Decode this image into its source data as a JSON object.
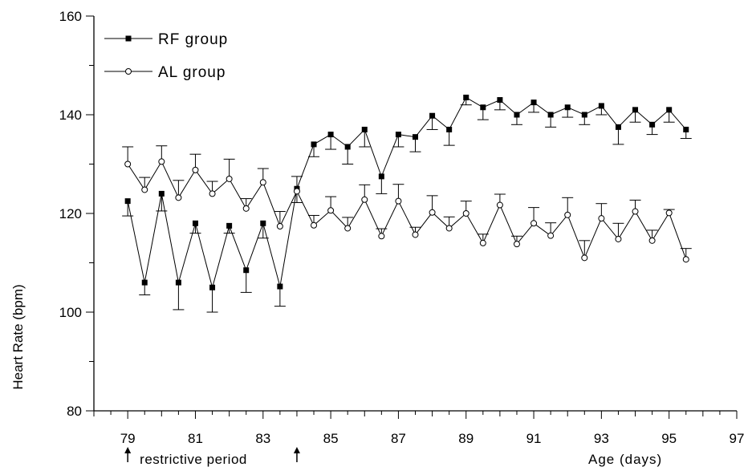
{
  "chart_data": {
    "type": "line",
    "title": "",
    "xlabel": "Age (days)",
    "ylabel": "Heart Rate (bpm)",
    "xlim": [
      78,
      97
    ],
    "ylim": [
      80,
      160
    ],
    "x_ticks": [
      79,
      81,
      83,
      85,
      87,
      89,
      91,
      93,
      95,
      97
    ],
    "y_ticks": [
      80,
      100,
      120,
      140,
      160
    ],
    "grid": false,
    "legend_position": "top-left",
    "annotation": "restrictive period",
    "restrictive_period": [
      79,
      84
    ],
    "x": [
      79,
      79.5,
      80,
      80.5,
      81,
      81.5,
      82,
      82.5,
      83,
      83.5,
      84,
      84.5,
      85,
      85.5,
      86,
      86.5,
      87,
      87.5,
      88,
      88.5,
      89,
      89.5,
      90,
      90.5,
      91,
      91.5,
      92,
      92.5,
      93,
      93.5,
      94,
      94.5,
      95,
      95.5
    ],
    "series": [
      {
        "name": "RF group",
        "marker": "filled-square",
        "error_direction": "down",
        "values": [
          122.5,
          106,
          124,
          106,
          118,
          105,
          117.5,
          108.5,
          118,
          105.2,
          125,
          134,
          136,
          133.5,
          137,
          127.5,
          136,
          135.5,
          139.8,
          137,
          143.5,
          141.5,
          143,
          140,
          142.5,
          140,
          141.5,
          140,
          141.8,
          137.5,
          141,
          138,
          141,
          137
        ],
        "errors": [
          3,
          2.5,
          3.5,
          5.5,
          2,
          5,
          1.5,
          4.5,
          3,
          4,
          2.8,
          2.5,
          3,
          3.5,
          3.5,
          3.5,
          2.5,
          3,
          2.8,
          3.2,
          1.5,
          2.5,
          2,
          2,
          2,
          2.5,
          2,
          2,
          1.8,
          3.5,
          2.5,
          2,
          2.5,
          1.8
        ]
      },
      {
        "name": "AL group",
        "marker": "open-circle",
        "error_direction": "up",
        "values": [
          130,
          124.8,
          130.5,
          123.2,
          128.8,
          124,
          127,
          121,
          126.3,
          117.4,
          124.5,
          117.6,
          120.6,
          117,
          122.8,
          115.4,
          122.5,
          115.7,
          120.2,
          117,
          120,
          114,
          121.7,
          113.8,
          118,
          115.5,
          119.7,
          111,
          119,
          114.8,
          120.4,
          114.5,
          120.1,
          110.7
        ],
        "errors": [
          3.5,
          2.5,
          3.2,
          3.5,
          3.2,
          2.5,
          4,
          2,
          2.8,
          3,
          3,
          2,
          2.8,
          2.2,
          3,
          1.5,
          3.4,
          1.5,
          3.4,
          2.3,
          2.5,
          1.8,
          2.2,
          1.6,
          3.2,
          2.6,
          3.5,
          3.5,
          3,
          3.2,
          2.3,
          2.1,
          0.7,
          2.2
        ]
      }
    ]
  }
}
